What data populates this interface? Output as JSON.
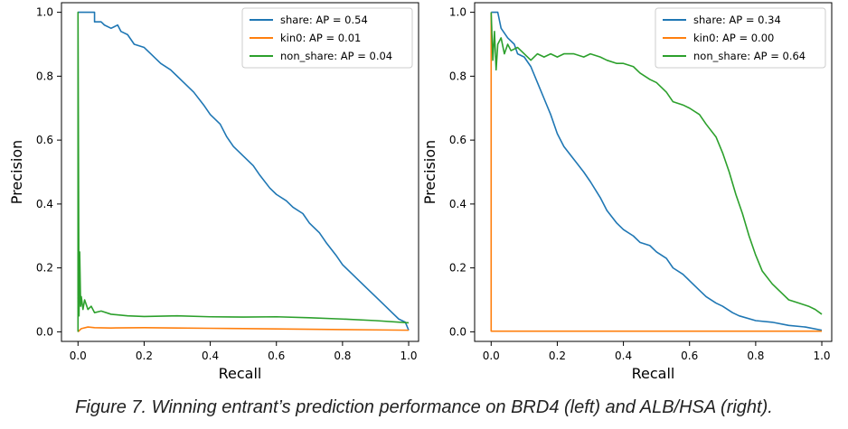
{
  "caption": "Figure 7. Winning entrant’s prediction performance on BRD4 (left) and ALB/HSA (right).",
  "colors": {
    "share": "#1f77b4",
    "kin0": "#ff7f0e",
    "non_share": "#2ca02c"
  },
  "chart_data": [
    {
      "type": "line",
      "xlabel": "Recall",
      "ylabel": "Precision",
      "xlim": [
        -0.05,
        1.03
      ],
      "ylim": [
        -0.03,
        1.03
      ],
      "xticks": [
        "0.0",
        "0.2",
        "0.4",
        "0.6",
        "0.8",
        "1.0"
      ],
      "yticks": [
        "0.0",
        "0.2",
        "0.4",
        "0.6",
        "0.8",
        "1.0"
      ],
      "grid": false,
      "legend_position": "top-right",
      "series": [
        {
          "name": "share: AP = 0.54",
          "key": "share",
          "points": [
            [
              0.0,
              1.0
            ],
            [
              0.01,
              1.0
            ],
            [
              0.03,
              1.0
            ],
            [
              0.05,
              1.0
            ],
            [
              0.05,
              0.97
            ],
            [
              0.07,
              0.97
            ],
            [
              0.08,
              0.96
            ],
            [
              0.1,
              0.95
            ],
            [
              0.12,
              0.96
            ],
            [
              0.13,
              0.94
            ],
            [
              0.15,
              0.93
            ],
            [
              0.17,
              0.9
            ],
            [
              0.2,
              0.89
            ],
            [
              0.22,
              0.87
            ],
            [
              0.25,
              0.84
            ],
            [
              0.28,
              0.82
            ],
            [
              0.3,
              0.8
            ],
            [
              0.32,
              0.78
            ],
            [
              0.35,
              0.75
            ],
            [
              0.38,
              0.71
            ],
            [
              0.4,
              0.68
            ],
            [
              0.43,
              0.65
            ],
            [
              0.45,
              0.61
            ],
            [
              0.47,
              0.58
            ],
            [
              0.5,
              0.55
            ],
            [
              0.53,
              0.52
            ],
            [
              0.55,
              0.49
            ],
            [
              0.58,
              0.45
            ],
            [
              0.6,
              0.43
            ],
            [
              0.63,
              0.41
            ],
            [
              0.65,
              0.39
            ],
            [
              0.68,
              0.37
            ],
            [
              0.7,
              0.34
            ],
            [
              0.73,
              0.31
            ],
            [
              0.75,
              0.28
            ],
            [
              0.78,
              0.24
            ],
            [
              0.8,
              0.21
            ],
            [
              0.83,
              0.18
            ],
            [
              0.85,
              0.16
            ],
            [
              0.88,
              0.13
            ],
            [
              0.9,
              0.11
            ],
            [
              0.93,
              0.08
            ],
            [
              0.95,
              0.06
            ],
            [
              0.97,
              0.04
            ],
            [
              0.99,
              0.03
            ],
            [
              1.0,
              0.005
            ]
          ]
        },
        {
          "name": "kin0: AP = 0.01",
          "key": "kin0",
          "points": [
            [
              0.0,
              0.0
            ],
            [
              0.01,
              0.01
            ],
            [
              0.03,
              0.015
            ],
            [
              0.05,
              0.013
            ],
            [
              0.1,
              0.012
            ],
            [
              0.2,
              0.013
            ],
            [
              0.3,
              0.012
            ],
            [
              0.4,
              0.011
            ],
            [
              0.5,
              0.01
            ],
            [
              0.6,
              0.009
            ],
            [
              0.7,
              0.008
            ],
            [
              0.8,
              0.007
            ],
            [
              0.9,
              0.006
            ],
            [
              1.0,
              0.005
            ]
          ]
        },
        {
          "name": "non_share: AP = 0.04",
          "key": "non_share",
          "points": [
            [
              0.0,
              0.0
            ],
            [
              0.0,
              1.0
            ],
            [
              0.003,
              0.05
            ],
            [
              0.005,
              0.25
            ],
            [
              0.008,
              0.08
            ],
            [
              0.01,
              0.11
            ],
            [
              0.015,
              0.07
            ],
            [
              0.02,
              0.1
            ],
            [
              0.03,
              0.07
            ],
            [
              0.04,
              0.08
            ],
            [
              0.05,
              0.06
            ],
            [
              0.07,
              0.065
            ],
            [
              0.1,
              0.055
            ],
            [
              0.15,
              0.05
            ],
            [
              0.2,
              0.048
            ],
            [
              0.3,
              0.05
            ],
            [
              0.4,
              0.047
            ],
            [
              0.5,
              0.046
            ],
            [
              0.6,
              0.047
            ],
            [
              0.7,
              0.044
            ],
            [
              0.8,
              0.04
            ],
            [
              0.9,
              0.035
            ],
            [
              1.0,
              0.028
            ]
          ]
        }
      ]
    },
    {
      "type": "line",
      "xlabel": "Recall",
      "ylabel": "Precision",
      "xlim": [
        -0.05,
        1.03
      ],
      "ylim": [
        -0.03,
        1.03
      ],
      "xticks": [
        "0.0",
        "0.2",
        "0.4",
        "0.6",
        "0.8",
        "1.0"
      ],
      "yticks": [
        "0.0",
        "0.2",
        "0.4",
        "0.6",
        "0.8",
        "1.0"
      ],
      "grid": false,
      "legend_position": "top-right",
      "series": [
        {
          "name": "share: AP = 0.34",
          "key": "share",
          "points": [
            [
              0.0,
              1.0
            ],
            [
              0.02,
              1.0
            ],
            [
              0.03,
              0.95
            ],
            [
              0.05,
              0.92
            ],
            [
              0.07,
              0.9
            ],
            [
              0.08,
              0.87
            ],
            [
              0.1,
              0.86
            ],
            [
              0.12,
              0.83
            ],
            [
              0.14,
              0.78
            ],
            [
              0.16,
              0.73
            ],
            [
              0.18,
              0.68
            ],
            [
              0.2,
              0.62
            ],
            [
              0.22,
              0.58
            ],
            [
              0.25,
              0.54
            ],
            [
              0.28,
              0.5
            ],
            [
              0.3,
              0.47
            ],
            [
              0.33,
              0.42
            ],
            [
              0.35,
              0.38
            ],
            [
              0.38,
              0.34
            ],
            [
              0.4,
              0.32
            ],
            [
              0.43,
              0.3
            ],
            [
              0.45,
              0.28
            ],
            [
              0.48,
              0.27
            ],
            [
              0.5,
              0.25
            ],
            [
              0.53,
              0.23
            ],
            [
              0.55,
              0.2
            ],
            [
              0.58,
              0.18
            ],
            [
              0.6,
              0.16
            ],
            [
              0.63,
              0.13
            ],
            [
              0.65,
              0.11
            ],
            [
              0.68,
              0.09
            ],
            [
              0.7,
              0.08
            ],
            [
              0.73,
              0.06
            ],
            [
              0.75,
              0.05
            ],
            [
              0.8,
              0.035
            ],
            [
              0.85,
              0.03
            ],
            [
              0.9,
              0.02
            ],
            [
              0.95,
              0.015
            ],
            [
              1.0,
              0.005
            ]
          ]
        },
        {
          "name": "kin0: AP = 0.00",
          "key": "kin0",
          "points": [
            [
              0.0,
              1.0
            ],
            [
              0.0,
              0.002
            ],
            [
              0.2,
              0.002
            ],
            [
              0.4,
              0.002
            ],
            [
              0.6,
              0.002
            ],
            [
              0.8,
              0.002
            ],
            [
              1.0,
              0.002
            ]
          ]
        },
        {
          "name": "non_share: AP = 0.64",
          "key": "non_share",
          "points": [
            [
              0.0,
              1.0
            ],
            [
              0.005,
              0.85
            ],
            [
              0.01,
              0.94
            ],
            [
              0.015,
              0.82
            ],
            [
              0.02,
              0.9
            ],
            [
              0.03,
              0.92
            ],
            [
              0.04,
              0.87
            ],
            [
              0.05,
              0.9
            ],
            [
              0.06,
              0.88
            ],
            [
              0.08,
              0.89
            ],
            [
              0.1,
              0.87
            ],
            [
              0.12,
              0.85
            ],
            [
              0.14,
              0.87
            ],
            [
              0.16,
              0.86
            ],
            [
              0.18,
              0.87
            ],
            [
              0.2,
              0.86
            ],
            [
              0.22,
              0.87
            ],
            [
              0.25,
              0.87
            ],
            [
              0.28,
              0.86
            ],
            [
              0.3,
              0.87
            ],
            [
              0.33,
              0.86
            ],
            [
              0.35,
              0.85
            ],
            [
              0.38,
              0.84
            ],
            [
              0.4,
              0.84
            ],
            [
              0.43,
              0.83
            ],
            [
              0.45,
              0.81
            ],
            [
              0.48,
              0.79
            ],
            [
              0.5,
              0.78
            ],
            [
              0.53,
              0.75
            ],
            [
              0.55,
              0.72
            ],
            [
              0.58,
              0.71
            ],
            [
              0.6,
              0.7
            ],
            [
              0.63,
              0.68
            ],
            [
              0.65,
              0.65
            ],
            [
              0.68,
              0.61
            ],
            [
              0.7,
              0.56
            ],
            [
              0.72,
              0.5
            ],
            [
              0.74,
              0.43
            ],
            [
              0.76,
              0.37
            ],
            [
              0.78,
              0.3
            ],
            [
              0.8,
              0.24
            ],
            [
              0.82,
              0.19
            ],
            [
              0.85,
              0.15
            ],
            [
              0.88,
              0.12
            ],
            [
              0.9,
              0.1
            ],
            [
              0.93,
              0.09
            ],
            [
              0.96,
              0.08
            ],
            [
              0.98,
              0.07
            ],
            [
              1.0,
              0.055
            ]
          ]
        }
      ]
    }
  ]
}
